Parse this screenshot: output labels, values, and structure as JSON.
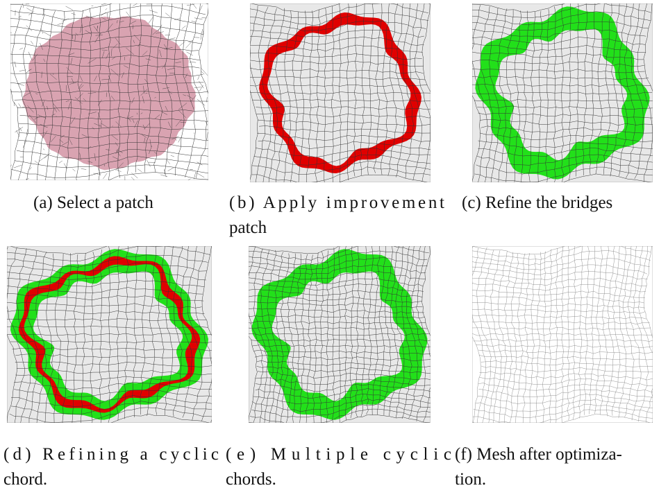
{
  "panels": [
    {
      "caption": [
        "(a) Select a patch"
      ]
    },
    {
      "caption": [
        "(b) Apply improvement",
        "patch"
      ]
    },
    {
      "caption": [
        "(c) Refine the bridges"
      ]
    },
    {
      "caption": [
        "(d) Refining a cyclic",
        "chord."
      ]
    },
    {
      "caption": [
        "(e) Multiple cyclic",
        "chords."
      ]
    },
    {
      "caption": [
        "(f) Mesh after optimiza-",
        "tion."
      ]
    }
  ]
}
